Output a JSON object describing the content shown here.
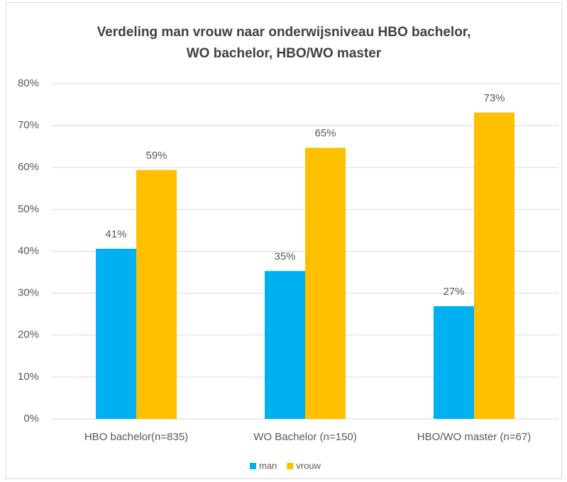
{
  "chart_data": {
    "type": "bar",
    "title": [
      "Verdeling man vrouw naar onderwijsniveau HBO bachelor,",
      "WO bachelor,  HBO/WO master"
    ],
    "categories": [
      "HBO bachelor(n=835)",
      "WO Bachelor (n=150)",
      "HBO/WO master (n=67)"
    ],
    "series": [
      {
        "name": "man",
        "color": "#00b0f0",
        "values": [
          40.6,
          35.3,
          26.9
        ],
        "value_labels": [
          "41%",
          "35%",
          "27%"
        ]
      },
      {
        "name": "vrouw",
        "color": "#ffc000",
        "values": [
          59.4,
          64.7,
          73.1
        ],
        "value_labels": [
          "59%",
          "65%",
          "73%"
        ]
      }
    ],
    "ylim": [
      0,
      80
    ],
    "yticks": [
      {
        "value": 0,
        "label": "0%"
      },
      {
        "value": 10,
        "label": "10%"
      },
      {
        "value": 20,
        "label": "20%"
      },
      {
        "value": 30,
        "label": "30%"
      },
      {
        "value": 40,
        "label": "40%"
      },
      {
        "value": 50,
        "label": "50%"
      },
      {
        "value": 60,
        "label": "60%"
      },
      {
        "value": 70,
        "label": "70%"
      },
      {
        "value": 80,
        "label": "80%"
      }
    ],
    "grid": true,
    "legend": "bottom"
  }
}
